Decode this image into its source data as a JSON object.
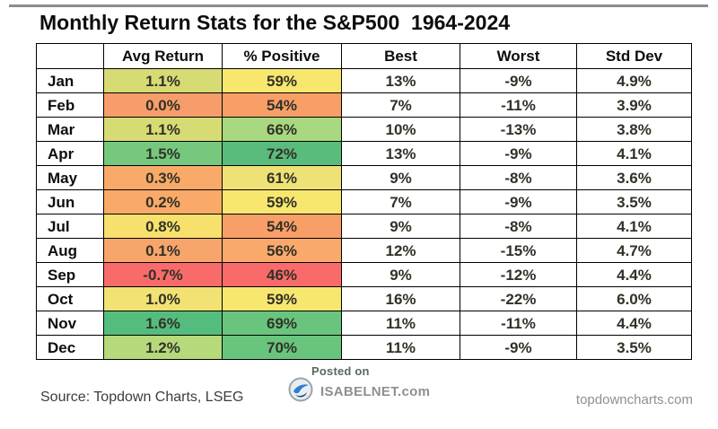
{
  "title": "Monthly Return Stats for the S&P500  1964-2024",
  "table": {
    "columns": [
      "",
      "Avg Return",
      "% Positive",
      "Best",
      "Worst",
      "Std Dev"
    ],
    "rows": [
      {
        "month": "Jan",
        "avg_return": "1.1%",
        "pct_positive": "59%",
        "best": "13%",
        "worst": "-9%",
        "std_dev": "4.9%",
        "avg_return_bg": "#d7db74",
        "pct_positive_bg": "#f8e76f"
      },
      {
        "month": "Feb",
        "avg_return": "0.0%",
        "pct_positive": "54%",
        "best": "7%",
        "worst": "-11%",
        "std_dev": "3.9%",
        "avg_return_bg": "#f79d6b",
        "pct_positive_bg": "#f89f68"
      },
      {
        "month": "Mar",
        "avg_return": "1.1%",
        "pct_positive": "66%",
        "best": "10%",
        "worst": "-13%",
        "std_dev": "3.8%",
        "avg_return_bg": "#d7db74",
        "pct_positive_bg": "#a8d87f"
      },
      {
        "month": "Apr",
        "avg_return": "1.5%",
        "pct_positive": "72%",
        "best": "13%",
        "worst": "-9%",
        "std_dev": "4.1%",
        "avg_return_bg": "#76c87d",
        "pct_positive_bg": "#5abc7c"
      },
      {
        "month": "May",
        "avg_return": "0.3%",
        "pct_positive": "61%",
        "best": "9%",
        "worst": "-8%",
        "std_dev": "3.6%",
        "avg_return_bg": "#f9aa68",
        "pct_positive_bg": "#eee276"
      },
      {
        "month": "Jun",
        "avg_return": "0.2%",
        "pct_positive": "59%",
        "best": "7%",
        "worst": "-9%",
        "std_dev": "3.5%",
        "avg_return_bg": "#f9aa68",
        "pct_positive_bg": "#f8e76f"
      },
      {
        "month": "Jul",
        "avg_return": "0.8%",
        "pct_positive": "54%",
        "best": "9%",
        "worst": "-8%",
        "std_dev": "4.1%",
        "avg_return_bg": "#f7e16c",
        "pct_positive_bg": "#f89f68"
      },
      {
        "month": "Aug",
        "avg_return": "0.1%",
        "pct_positive": "56%",
        "best": "12%",
        "worst": "-15%",
        "std_dev": "4.7%",
        "avg_return_bg": "#f8a56b",
        "pct_positive_bg": "#f9a96b"
      },
      {
        "month": "Sep",
        "avg_return": "-0.7%",
        "pct_positive": "46%",
        "best": "9%",
        "worst": "-12%",
        "std_dev": "4.4%",
        "avg_return_bg": "#f96b6b",
        "pct_positive_bg": "#f96b6b"
      },
      {
        "month": "Oct",
        "avg_return": "1.0%",
        "pct_positive": "59%",
        "best": "16%",
        "worst": "-22%",
        "std_dev": "6.0%",
        "avg_return_bg": "#f1e273",
        "pct_positive_bg": "#f8e76f"
      },
      {
        "month": "Nov",
        "avg_return": "1.6%",
        "pct_positive": "69%",
        "best": "11%",
        "worst": "-11%",
        "std_dev": "4.4%",
        "avg_return_bg": "#54bd7e",
        "pct_positive_bg": "#69c57e"
      },
      {
        "month": "Dec",
        "avg_return": "1.2%",
        "pct_positive": "70%",
        "best": "11%",
        "worst": "-9%",
        "std_dev": "3.5%",
        "avg_return_bg": "#b5d97b",
        "pct_positive_bg": "#69c57e"
      }
    ]
  },
  "watermark": {
    "posted_on": "Posted on",
    "site": "ISABELNET.com"
  },
  "footer": {
    "source": "Source: Topdown Charts, LSEG",
    "site_right": "topdowncharts.com"
  },
  "chart_data": {
    "type": "table",
    "title": "Monthly Return Stats for the S&P500 1964-2024",
    "categories": [
      "Jan",
      "Feb",
      "Mar",
      "Apr",
      "May",
      "Jun",
      "Jul",
      "Aug",
      "Sep",
      "Oct",
      "Nov",
      "Dec"
    ],
    "series": [
      {
        "name": "Avg Return",
        "values": [
          1.1,
          0.0,
          1.1,
          1.5,
          0.3,
          0.2,
          0.8,
          0.1,
          -0.7,
          1.0,
          1.6,
          1.2
        ],
        "unit": "%",
        "heatmap": true
      },
      {
        "name": "% Positive",
        "values": [
          59,
          54,
          66,
          72,
          61,
          59,
          54,
          56,
          46,
          59,
          69,
          70
        ],
        "unit": "%",
        "heatmap": true
      },
      {
        "name": "Best",
        "values": [
          13,
          7,
          10,
          13,
          9,
          7,
          9,
          12,
          9,
          16,
          11,
          11
        ],
        "unit": "%",
        "heatmap": false
      },
      {
        "name": "Worst",
        "values": [
          -9,
          -11,
          -13,
          -9,
          -8,
          -9,
          -8,
          -15,
          -12,
          -22,
          -11,
          -9
        ],
        "unit": "%",
        "heatmap": false
      },
      {
        "name": "Std Dev",
        "values": [
          4.9,
          3.9,
          3.8,
          4.1,
          3.6,
          3.5,
          4.1,
          4.7,
          4.4,
          6.0,
          4.4,
          3.5
        ],
        "unit": "%",
        "heatmap": false
      }
    ],
    "heatmap_scale": {
      "low_color": "#f96b6b",
      "mid_color": "#f8e76f",
      "high_color": "#54bd7e"
    }
  }
}
